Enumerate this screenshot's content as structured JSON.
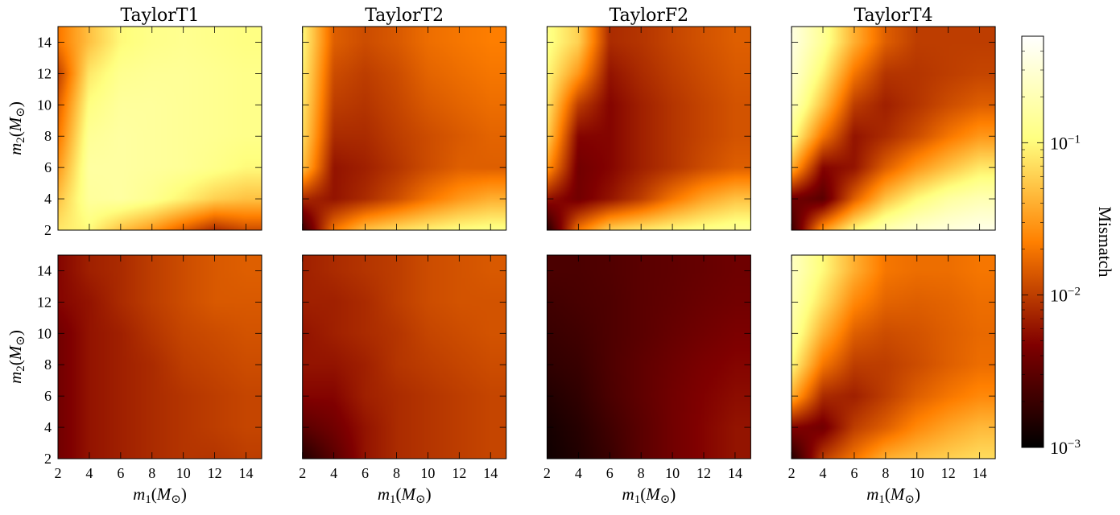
{
  "chart_data": {
    "type": "heatmap",
    "columns": [
      "TaylorT1",
      "TaylorT2",
      "TaylorF2",
      "TaylorT4"
    ],
    "rows": 2,
    "x_axis": {
      "label_base": "m",
      "label_sub": "1",
      "label_unit": "(M",
      "label_sun": "⊙",
      "label_close": ")",
      "range": [
        2,
        15
      ],
      "ticks": [
        2,
        4,
        6,
        8,
        10,
        12,
        14
      ]
    },
    "y_axis": {
      "label_base": "m",
      "label_sub": "2",
      "label_unit": "(M",
      "label_sun": "⊙",
      "label_close": ")",
      "range": [
        2,
        15
      ],
      "ticks": [
        2,
        4,
        6,
        8,
        10,
        12,
        14
      ]
    },
    "colorbar": {
      "label": "Mismatch",
      "scale": "log",
      "range": [
        0.001,
        0.5
      ],
      "ticks": [
        {
          "value": 0.001,
          "base": "10",
          "exp": "−3"
        },
        {
          "value": 0.01,
          "base": "10",
          "exp": "−2"
        },
        {
          "value": 0.1,
          "base": "10",
          "exp": "−1"
        }
      ],
      "colormap": "afmhot"
    },
    "panels": [
      {
        "row": 0,
        "col": 0,
        "name": "TaylorT1",
        "grid_x": [
          2,
          4,
          6,
          8,
          10,
          12,
          14
        ],
        "grid_y": [
          2,
          4,
          6,
          8,
          10,
          12,
          14
        ],
        "values": [
          [
            0.08,
            0.1,
            0.05,
            0.03,
            0.015,
            0.008,
            0.012
          ],
          [
            0.05,
            0.15,
            0.16,
            0.13,
            0.09,
            0.06,
            0.05
          ],
          [
            0.03,
            0.16,
            0.16,
            0.15,
            0.14,
            0.12,
            0.1
          ],
          [
            0.02,
            0.14,
            0.16,
            0.15,
            0.14,
            0.13,
            0.12
          ],
          [
            0.015,
            0.11,
            0.15,
            0.15,
            0.14,
            0.13,
            0.12
          ],
          [
            0.01,
            0.08,
            0.13,
            0.14,
            0.14,
            0.13,
            0.12
          ],
          [
            0.02,
            0.05,
            0.1,
            0.12,
            0.13,
            0.12,
            0.11
          ]
        ]
      },
      {
        "row": 0,
        "col": 1,
        "name": "TaylorT2",
        "grid_x": [
          2,
          4,
          6,
          8,
          10,
          12,
          14
        ],
        "grid_y": [
          2,
          4,
          6,
          8,
          10,
          12,
          14
        ],
        "values": [
          [
            0.002,
            0.02,
            0.05,
            0.07,
            0.09,
            0.11,
            0.12
          ],
          [
            0.008,
            0.006,
            0.008,
            0.012,
            0.02,
            0.03,
            0.04
          ],
          [
            0.05,
            0.006,
            0.007,
            0.009,
            0.012,
            0.015,
            0.015
          ],
          [
            0.07,
            0.008,
            0.008,
            0.01,
            0.012,
            0.014,
            0.016
          ],
          [
            0.08,
            0.01,
            0.009,
            0.011,
            0.014,
            0.016,
            0.018
          ],
          [
            0.09,
            0.012,
            0.01,
            0.012,
            0.016,
            0.018,
            0.02
          ],
          [
            0.1,
            0.015,
            0.012,
            0.014,
            0.018,
            0.02,
            0.022
          ]
        ]
      },
      {
        "row": 0,
        "col": 2,
        "name": "TaylorF2",
        "grid_x": [
          2,
          4,
          6,
          8,
          10,
          12,
          14
        ],
        "grid_y": [
          2,
          4,
          6,
          8,
          10,
          12,
          14
        ],
        "values": [
          [
            0.0015,
            0.02,
            0.06,
            0.08,
            0.1,
            0.12,
            0.14
          ],
          [
            0.006,
            0.004,
            0.006,
            0.01,
            0.02,
            0.035,
            0.05
          ],
          [
            0.03,
            0.004,
            0.005,
            0.007,
            0.009,
            0.012,
            0.015
          ],
          [
            0.06,
            0.005,
            0.005,
            0.007,
            0.009,
            0.011,
            0.013
          ],
          [
            0.08,
            0.01,
            0.005,
            0.007,
            0.009,
            0.011,
            0.013
          ],
          [
            0.1,
            0.03,
            0.006,
            0.008,
            0.01,
            0.012,
            0.014
          ],
          [
            0.12,
            0.06,
            0.008,
            0.009,
            0.011,
            0.013,
            0.015
          ]
        ]
      },
      {
        "row": 0,
        "col": 3,
        "name": "TaylorT4",
        "grid_x": [
          2,
          4,
          6,
          8,
          10,
          12,
          14
        ],
        "grid_y": [
          2,
          4,
          6,
          8,
          10,
          12,
          14
        ],
        "values": [
          [
            0.002,
            0.03,
            0.1,
            0.2,
            0.28,
            0.33,
            0.38
          ],
          [
            0.004,
            0.003,
            0.015,
            0.05,
            0.1,
            0.16,
            0.2
          ],
          [
            0.04,
            0.005,
            0.006,
            0.015,
            0.03,
            0.05,
            0.08
          ],
          [
            0.12,
            0.02,
            0.006,
            0.008,
            0.012,
            0.02,
            0.03
          ],
          [
            0.22,
            0.05,
            0.01,
            0.007,
            0.009,
            0.012,
            0.015
          ],
          [
            0.3,
            0.09,
            0.02,
            0.009,
            0.009,
            0.01,
            0.011
          ],
          [
            0.35,
            0.14,
            0.04,
            0.015,
            0.01,
            0.01,
            0.01
          ]
        ]
      },
      {
        "row": 1,
        "col": 0,
        "name": "TaylorT1",
        "grid_x": [
          2,
          4,
          6,
          8,
          10,
          12,
          14
        ],
        "grid_y": [
          2,
          4,
          6,
          8,
          10,
          12,
          14
        ],
        "values": [
          [
            0.004,
            0.006,
            0.007,
            0.008,
            0.009,
            0.009,
            0.01
          ],
          [
            0.004,
            0.006,
            0.007,
            0.008,
            0.009,
            0.01,
            0.011
          ],
          [
            0.004,
            0.006,
            0.007,
            0.008,
            0.009,
            0.01,
            0.011
          ],
          [
            0.004,
            0.006,
            0.007,
            0.008,
            0.01,
            0.011,
            0.012
          ],
          [
            0.004,
            0.006,
            0.007,
            0.009,
            0.011,
            0.012,
            0.013
          ],
          [
            0.005,
            0.006,
            0.008,
            0.01,
            0.012,
            0.014,
            0.014
          ],
          [
            0.005,
            0.007,
            0.008,
            0.01,
            0.012,
            0.014,
            0.015
          ]
        ]
      },
      {
        "row": 1,
        "col": 1,
        "name": "TaylorT2",
        "grid_x": [
          2,
          4,
          6,
          8,
          10,
          12,
          14
        ],
        "grid_y": [
          2,
          4,
          6,
          8,
          10,
          12,
          14
        ],
        "values": [
          [
            0.0015,
            0.003,
            0.006,
            0.008,
            0.009,
            0.01,
            0.011
          ],
          [
            0.003,
            0.004,
            0.006,
            0.008,
            0.009,
            0.01,
            0.011
          ],
          [
            0.005,
            0.005,
            0.007,
            0.008,
            0.009,
            0.01,
            0.011
          ],
          [
            0.006,
            0.006,
            0.007,
            0.009,
            0.01,
            0.011,
            0.012
          ],
          [
            0.006,
            0.007,
            0.008,
            0.009,
            0.011,
            0.012,
            0.013
          ],
          [
            0.007,
            0.007,
            0.008,
            0.01,
            0.012,
            0.013,
            0.013
          ],
          [
            0.007,
            0.008,
            0.009,
            0.01,
            0.012,
            0.013,
            0.014
          ]
        ]
      },
      {
        "row": 1,
        "col": 2,
        "name": "TaylorF2",
        "grid_x": [
          2,
          4,
          6,
          8,
          10,
          12,
          14
        ],
        "grid_y": [
          2,
          4,
          6,
          8,
          10,
          12,
          14
        ],
        "values": [
          [
            0.0012,
            0.0015,
            0.002,
            0.003,
            0.004,
            0.005,
            0.006
          ],
          [
            0.0013,
            0.0016,
            0.0022,
            0.003,
            0.004,
            0.005,
            0.006
          ],
          [
            0.0015,
            0.0018,
            0.0025,
            0.0032,
            0.004,
            0.0048,
            0.0055
          ],
          [
            0.0018,
            0.002,
            0.0026,
            0.0032,
            0.0038,
            0.0045,
            0.005
          ],
          [
            0.002,
            0.0022,
            0.0026,
            0.003,
            0.0035,
            0.004,
            0.0045
          ],
          [
            0.0022,
            0.0024,
            0.0026,
            0.003,
            0.0033,
            0.0037,
            0.004
          ],
          [
            0.0025,
            0.0025,
            0.0027,
            0.003,
            0.0032,
            0.0035,
            0.0038
          ]
        ]
      },
      {
        "row": 1,
        "col": 3,
        "name": "TaylorT4",
        "grid_x": [
          2,
          4,
          6,
          8,
          10,
          12,
          14
        ],
        "grid_y": [
          2,
          4,
          6,
          8,
          10,
          12,
          14
        ],
        "values": [
          [
            0.0015,
            0.01,
            0.02,
            0.04,
            0.05,
            0.06,
            0.07
          ],
          [
            0.005,
            0.004,
            0.01,
            0.015,
            0.025,
            0.035,
            0.045
          ],
          [
            0.04,
            0.008,
            0.007,
            0.01,
            0.015,
            0.02,
            0.025
          ],
          [
            0.1,
            0.02,
            0.01,
            0.01,
            0.012,
            0.015,
            0.018
          ],
          [
            0.16,
            0.04,
            0.015,
            0.012,
            0.013,
            0.015,
            0.017
          ],
          [
            0.2,
            0.07,
            0.025,
            0.016,
            0.015,
            0.016,
            0.018
          ],
          [
            0.24,
            0.1,
            0.04,
            0.02,
            0.018,
            0.018,
            0.02
          ]
        ]
      }
    ]
  }
}
